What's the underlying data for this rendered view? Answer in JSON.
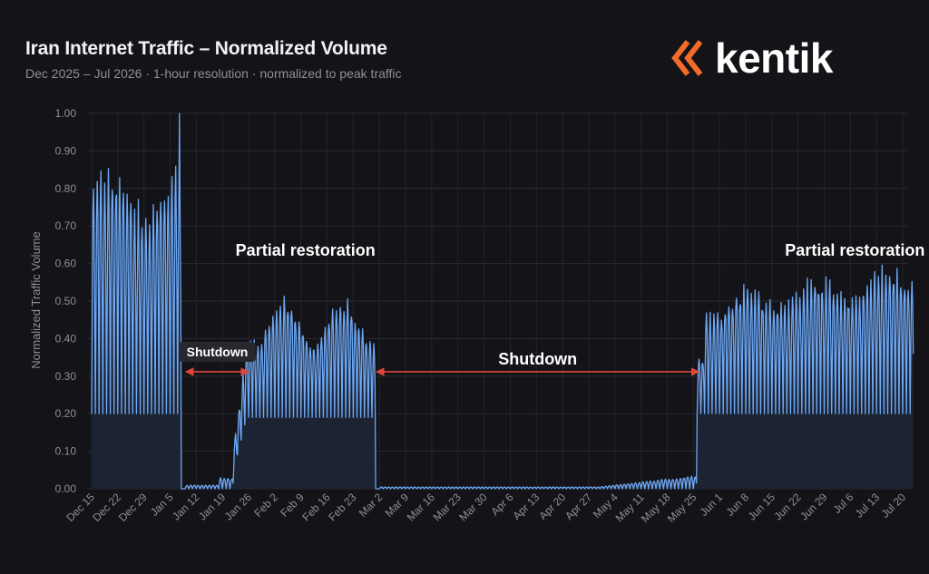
{
  "header": {
    "title": "Iran Internet Traffic – Normalized Volume",
    "subtitle": "Dec 2025 – Jul 2026  ·  1-hour resolution  ·  normalized to peak traffic"
  },
  "logo": {
    "text": "kentik",
    "icon": "kentik-chevrons-icon",
    "color": "#f26b2a"
  },
  "chart_data": {
    "type": "area",
    "ylabel": "Normalized Traffic Volume",
    "xlabel": "",
    "ylim": [
      0,
      1.0
    ],
    "yticks": [
      "0.00",
      "0.10",
      "0.20",
      "0.30",
      "0.40",
      "0.50",
      "0.60",
      "0.70",
      "0.80",
      "0.90",
      "1.00"
    ],
    "xticks": [
      "Dec 15",
      "Dec 22",
      "Dec 29",
      "Jan 5",
      "Jan 12",
      "Jan 19",
      "Jan 26",
      "Feb 2",
      "Feb 9",
      "Feb 16",
      "Feb 23",
      "Mar 2",
      "Mar 9",
      "Mar 16",
      "Mar 23",
      "Mar 30",
      "Apr 6",
      "Apr 13",
      "Apr 20",
      "Apr 27",
      "May 4",
      "May 11",
      "May 18",
      "May 25",
      "Jun 1",
      "Jun 8",
      "Jun 15",
      "Jun 22",
      "Jun 29",
      "Jul 6",
      "Jul 13",
      "Jul 20"
    ],
    "grid": true,
    "line_color": "#6ea8f5",
    "fill_color": "#1c2433",
    "series": [
      {
        "name": "",
        "description_by_period": [
          {
            "start": "Dec 15",
            "end": "Jan 7",
            "daily_min": 0.2,
            "daily_max": 0.9,
            "note": "Normal traffic, peak 1.00 on Jan 7"
          },
          {
            "start": "Jan 8",
            "end": "Jan 22",
            "daily_min": 0.0,
            "daily_max": 0.02
          },
          {
            "start": "Jan 22",
            "end": "Jan 26",
            "daily_min": 0.1,
            "daily_max": 0.3
          },
          {
            "start": "Jan 26",
            "end": "Feb 28",
            "daily_min": 0.19,
            "daily_max": 0.55
          },
          {
            "start": "Feb 28",
            "end": "May 27",
            "daily_min": 0.0,
            "daily_max": 0.04
          },
          {
            "start": "May 27",
            "end": "Jul 22",
            "daily_min": 0.2,
            "daily_max": 0.65
          }
        ]
      }
    ],
    "annotations": [
      {
        "text": "Partial restoration",
        "x": "Feb 9",
        "y": 0.65
      },
      {
        "text": "Partial restoration",
        "x": "Jul 6",
        "y": 0.65
      },
      {
        "text": "Shutdown",
        "x_start": "Jan 8",
        "x_end": "Jan 26",
        "y": 0.36,
        "boxed": true
      },
      {
        "text": "Shutdown",
        "x_start": "Feb 28",
        "x_end": "May 27",
        "y": 0.36,
        "boxed": false
      }
    ]
  }
}
